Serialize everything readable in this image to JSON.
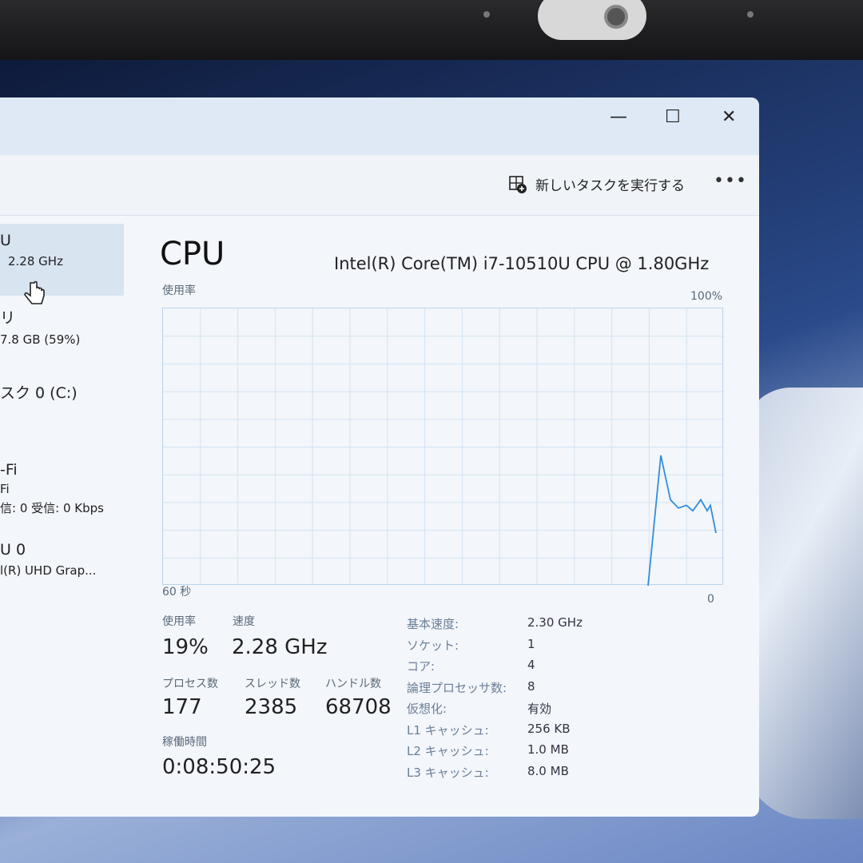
{
  "window": {
    "minimize": "—",
    "maximize": "☐",
    "close": "✕"
  },
  "command_bar": {
    "run_new_task": "新しいタスクを実行する",
    "more": "•••"
  },
  "sidebar": {
    "items": [
      {
        "title": "U",
        "subtitle": "2.28 GHz"
      },
      {
        "title": "リ",
        "subtitle": "7.8 GB (59%)"
      },
      {
        "title": "スク 0 (C:)",
        "subtitle": ""
      },
      {
        "title": "-Fi",
        "subtitle": "Fi",
        "detail": "信: 0 受信: 0 Kbps"
      },
      {
        "title": "U 0",
        "subtitle": "l(R) UHD Grap..."
      }
    ]
  },
  "main": {
    "title": "CPU",
    "processor": "Intel(R) Core(TM) i7-10510U CPU @ 1.80GHz",
    "graph_label": "使用率",
    "graph_max": "100%",
    "graph_min": "0",
    "graph_time": "60 秒",
    "graph_samples_percent": [
      0,
      47,
      31,
      28,
      29,
      27,
      31,
      27,
      29,
      19
    ],
    "line_color": "#2f8ee0",
    "stats": {
      "usage_label": "使用率",
      "usage": "19%",
      "speed_label": "速度",
      "speed": "2.28 GHz",
      "processes_label": "プロセス数",
      "processes": "177",
      "threads_label": "スレッド数",
      "threads": "2385",
      "handles_label": "ハンドル数",
      "handles": "68708",
      "uptime_label": "稼働時間",
      "uptime": "0:08:50:25"
    },
    "specs": [
      {
        "k": "基本速度:",
        "v": "2.30 GHz"
      },
      {
        "k": "ソケット:",
        "v": "1"
      },
      {
        "k": "コア:",
        "v": "4"
      },
      {
        "k": "論理プロセッサ数:",
        "v": "8"
      },
      {
        "k": "仮想化:",
        "v": "有効"
      },
      {
        "k": "L1 キャッシュ:",
        "v": "256 KB"
      },
      {
        "k": "L2 キャッシュ:",
        "v": "1.0 MB"
      },
      {
        "k": "L3 キャッシュ:",
        "v": "8.0 MB"
      }
    ]
  }
}
